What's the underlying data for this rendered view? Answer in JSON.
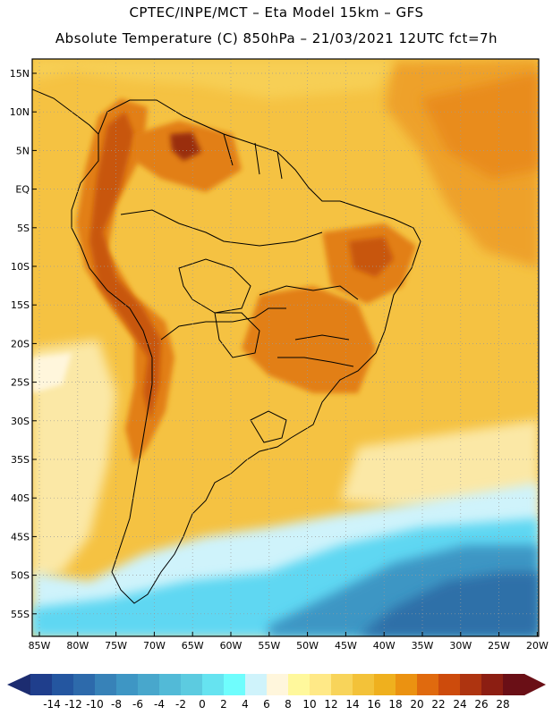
{
  "header": {
    "line1": "CPTEC/INPE/MCT –  Eta Model 15km – GFS",
    "line2": "Absolute Temperature (C) 850hPa – 21/03/2021 12UTC fct=7h"
  },
  "map": {
    "region": "South America",
    "lat_labels": [
      "15N",
      "10N",
      "5N",
      "EQ",
      "5S",
      "10S",
      "15S",
      "20S",
      "25S",
      "30S",
      "35S",
      "40S",
      "45S",
      "50S",
      "55S"
    ],
    "lon_labels": [
      "85W",
      "80W",
      "75W",
      "70W",
      "65W",
      "60W",
      "55W",
      "50W",
      "45W",
      "40W",
      "35W",
      "30W",
      "25W",
      "20W"
    ],
    "colors": {
      "background": "#f5c242",
      "ocean_warm": "#eeb62a",
      "hot": "#e27f16",
      "very_hot": "#c8560e",
      "hottest": "#9a2f0c",
      "cool": "#fbe07a",
      "pale": "#fff6dc",
      "cold": "#b6ecfb",
      "colder": "#5fd7f2",
      "coldest": "#2f86b8",
      "deep_cold": "#2d6fa8"
    }
  },
  "colorbar": {
    "labels": [
      "-14",
      "-12",
      "-10",
      "-8",
      "-6",
      "-4",
      "-2",
      "0",
      "2",
      "4",
      "6",
      "8",
      "10",
      "12",
      "14",
      "16",
      "18",
      "20",
      "22",
      "24",
      "26",
      "28"
    ],
    "colors": [
      "#1f3e8c",
      "#2456a0",
      "#2d6aab",
      "#3782b8",
      "#3e96c4",
      "#48a7cc",
      "#52bad7",
      "#5ccbe0",
      "#66e3f0",
      "#6ffdfd",
      "#cff3fb",
      "#fff6dc",
      "#fff89c",
      "#ffe987",
      "#f8d45a",
      "#f3c239",
      "#efb01e",
      "#eb9211",
      "#e06a0e",
      "#cd4b0c",
      "#ae3410",
      "#8c1e12",
      "#6a0f16"
    ],
    "left_arrow_color": "#1c2c70",
    "right_arrow_color": "#6a0f16"
  }
}
